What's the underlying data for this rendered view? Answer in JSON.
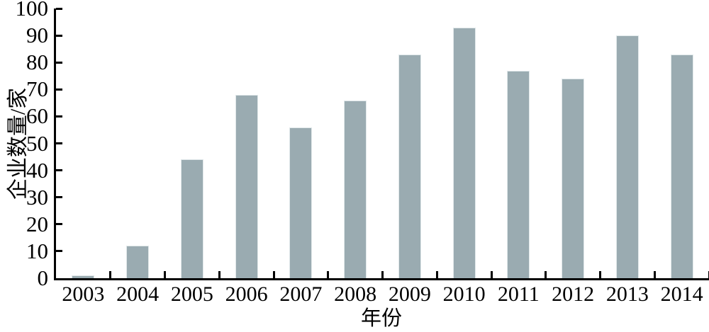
{
  "figure": {
    "background_color": "#ffffff",
    "text_color": "#000000"
  },
  "chart_data": {
    "type": "bar",
    "title": "",
    "xlabel": "年份",
    "ylabel": "企业数量/家",
    "categories": [
      "2003",
      "2004",
      "2005",
      "2006",
      "2007",
      "2008",
      "2009",
      "2010",
      "2011",
      "2012",
      "2013",
      "2014"
    ],
    "values": [
      1,
      12,
      44,
      68,
      56,
      66,
      83,
      93,
      77,
      74,
      90,
      83
    ],
    "ylim": [
      0,
      100
    ],
    "ytick_interval": 10,
    "ytick_labels": [
      "0",
      "10",
      "20",
      "30",
      "40",
      "50",
      "60",
      "70",
      "80",
      "90",
      "100"
    ],
    "grid": false,
    "legend_position": "none",
    "bar_color": "#9aabb1",
    "bar_edge_color": "#e1e8ea",
    "axis_color": "#000000"
  }
}
